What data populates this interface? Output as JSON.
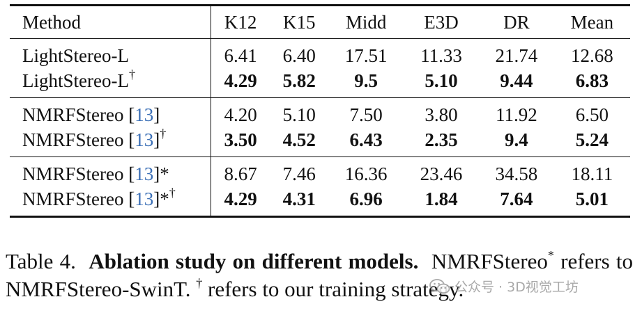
{
  "table": {
    "headers": [
      "Method",
      "K12",
      "K15",
      "Midd",
      "E3D",
      "DR",
      "Mean"
    ],
    "groups": [
      {
        "rows": [
          {
            "name": "LightStereo-L",
            "cite": "",
            "suffix": "",
            "mark": "",
            "values": [
              "6.41",
              "6.40",
              "17.51",
              "11.33",
              "21.74",
              "12.68"
            ],
            "bold": false
          },
          {
            "name": "LightStereo-L",
            "cite": "",
            "suffix": "",
            "mark": "†",
            "values": [
              "4.29",
              "5.82",
              "9.5",
              "5.10",
              "9.44",
              "6.83"
            ],
            "bold": true
          }
        ]
      },
      {
        "rows": [
          {
            "name": "NMRFStereo [",
            "cite": "13",
            "suffix": "]",
            "mark": "",
            "values": [
              "4.20",
              "5.10",
              "7.50",
              "3.80",
              "11.92",
              "6.50"
            ],
            "bold": false
          },
          {
            "name": "NMRFStereo [",
            "cite": "13",
            "suffix": "]",
            "mark": "†",
            "values": [
              "3.50",
              "4.52",
              "6.43",
              "2.35",
              "9.4",
              "5.24"
            ],
            "bold": true
          }
        ]
      },
      {
        "rows": [
          {
            "name": "NMRFStereo [",
            "cite": "13",
            "suffix": "]*",
            "mark": "",
            "values": [
              "8.67",
              "7.46",
              "16.36",
              "23.46",
              "34.58",
              "18.11"
            ],
            "bold": false
          },
          {
            "name": "NMRFStereo [",
            "cite": "13",
            "suffix": "]*",
            "mark": "†",
            "values": [
              "4.29",
              "4.31",
              "6.96",
              "1.84",
              "7.64",
              "5.01"
            ],
            "bold": true
          }
        ]
      }
    ]
  },
  "caption": {
    "label": "Table 4.",
    "title": "Ablation study on different models.",
    "text1": "NMRFStereo",
    "star": "*",
    "text2": "refers to NMRFStereo-SwinT.",
    "dagger": "†",
    "text3": "refers to our training strategy."
  },
  "watermark": {
    "text": "公众号 · 3D视觉工坊",
    "icon": "wechat-icon"
  },
  "colors": {
    "cite": "#3b6fb6",
    "watermark": "#9a9a9a"
  }
}
